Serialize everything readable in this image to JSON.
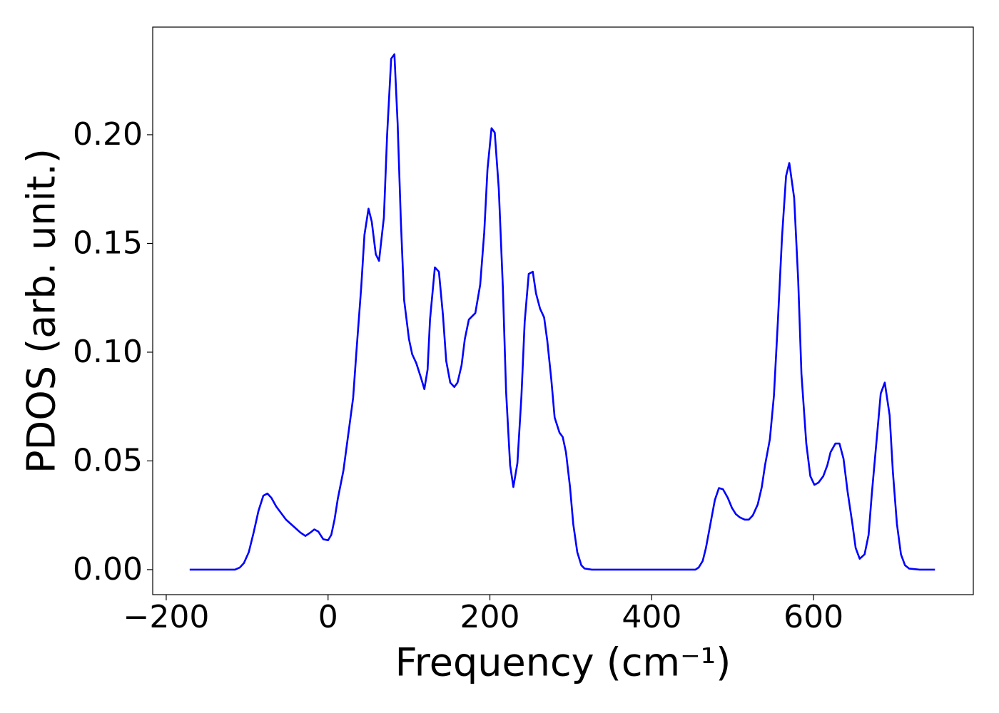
{
  "chart_data": {
    "type": "line",
    "xlabel": "Frequency (cm⁻¹)",
    "ylabel": "PDOS (arb. unit.)",
    "x": [
      -171,
      -115,
      -109,
      -104,
      -98,
      -92,
      -86,
      -80,
      -75,
      -70,
      -64,
      -58,
      -52,
      -46,
      -40,
      -34,
      -28,
      -22,
      -17,
      -12,
      -6,
      0,
      4,
      8,
      12,
      19,
      26,
      31,
      35,
      41,
      45,
      50,
      54,
      59,
      63,
      69,
      73,
      78,
      82,
      86,
      90,
      94,
      100,
      104,
      109,
      115,
      119,
      123,
      126,
      132,
      137,
      142,
      146,
      151,
      156,
      160,
      165,
      169,
      174,
      182,
      188,
      193,
      197,
      202,
      206,
      211,
      216,
      220,
      225,
      229,
      234,
      239,
      243,
      248,
      253,
      257,
      262,
      267,
      271,
      276,
      280,
      286,
      290,
      294,
      299,
      303,
      308,
      313,
      317,
      326,
      454,
      458,
      463,
      467,
      472,
      478,
      483,
      488,
      494,
      499,
      504,
      509,
      515,
      520,
      525,
      531,
      536,
      540,
      546,
      551,
      556,
      561,
      566,
      570,
      576,
      581,
      585,
      591,
      596,
      601,
      606,
      612,
      617,
      621,
      627,
      632,
      637,
      642,
      648,
      652,
      657,
      663,
      668,
      672,
      678,
      683,
      688,
      694,
      698,
      703,
      708,
      713,
      718,
      731,
      750
    ],
    "series": [
      {
        "name": "PDOS",
        "color": "#0000ff",
        "values": [
          0,
          0,
          0.001,
          0.003,
          0.008,
          0.017,
          0.027,
          0.034,
          0.035,
          0.033,
          0.029,
          0.026,
          0.023,
          0.021,
          0.019,
          0.017,
          0.0155,
          0.017,
          0.0185,
          0.0175,
          0.014,
          0.0135,
          0.016,
          0.023,
          0.0325,
          0.0456,
          0.065,
          0.079,
          0.1,
          0.13,
          0.154,
          0.166,
          0.16,
          0.145,
          0.142,
          0.162,
          0.2,
          0.235,
          0.237,
          0.205,
          0.16,
          0.124,
          0.106,
          0.099,
          0.095,
          0.088,
          0.083,
          0.092,
          0.115,
          0.139,
          0.137,
          0.117,
          0.096,
          0.086,
          0.084,
          0.086,
          0.094,
          0.106,
          0.115,
          0.118,
          0.131,
          0.155,
          0.184,
          0.203,
          0.201,
          0.175,
          0.13,
          0.082,
          0.048,
          0.038,
          0.049,
          0.08,
          0.114,
          0.136,
          0.137,
          0.127,
          0.12,
          0.116,
          0.105,
          0.087,
          0.07,
          0.063,
          0.061,
          0.054,
          0.038,
          0.021,
          0.008,
          0.002,
          0.0005,
          0,
          0,
          0.001,
          0.004,
          0.01,
          0.02,
          0.032,
          0.0375,
          0.037,
          0.033,
          0.0285,
          0.0255,
          0.024,
          0.023,
          0.023,
          0.025,
          0.03,
          0.038,
          0.048,
          0.06,
          0.08,
          0.115,
          0.153,
          0.181,
          0.187,
          0.171,
          0.133,
          0.09,
          0.058,
          0.043,
          0.039,
          0.04,
          0.043,
          0.048,
          0.054,
          0.058,
          0.058,
          0.051,
          0.036,
          0.021,
          0.01,
          0.005,
          0.007,
          0.016,
          0.035,
          0.06,
          0.081,
          0.086,
          0.071,
          0.045,
          0.021,
          0.007,
          0.002,
          0.0005,
          0,
          0
        ]
      }
    ],
    "xlim": [
      -216.7,
      797.4
    ],
    "ylim": [
      -0.0115,
      0.2495
    ],
    "xticks": [
      {
        "value": -200,
        "label": "−200"
      },
      0,
      200,
      400,
      600
    ],
    "yticks": [
      {
        "value": 0,
        "label": "0.00"
      },
      {
        "value": 0.05,
        "label": "0.05"
      },
      {
        "value": 0.1,
        "label": "0.10"
      },
      {
        "value": 0.15,
        "label": "0.15"
      },
      {
        "value": 0.2,
        "label": "0.20"
      }
    ],
    "grid": false
  }
}
